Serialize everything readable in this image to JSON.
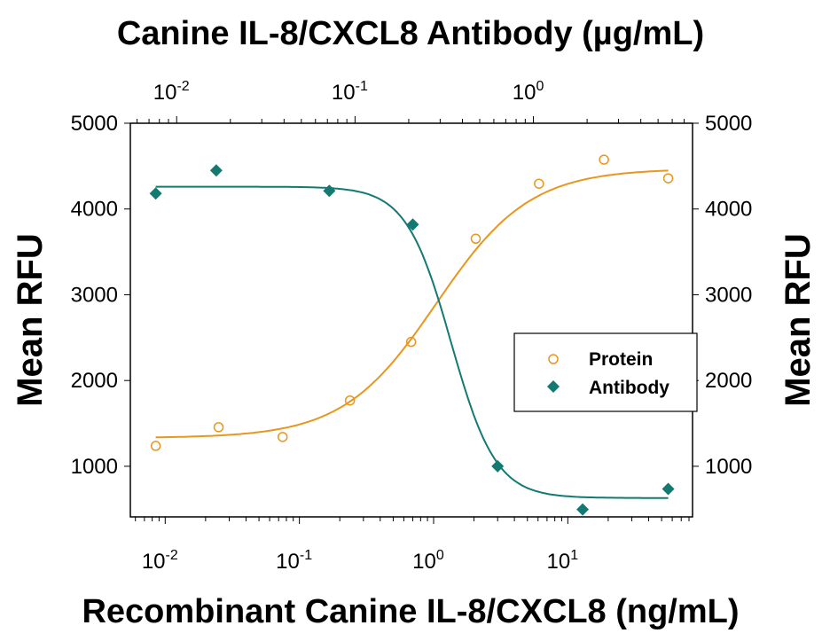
{
  "chart_data": {
    "type": "scatter",
    "title": "Canine IL-8/CXCL8 Antibody (µg/mL)",
    "xlabel": "Recombinant Canine IL-8/CXCL8 (ng/mL)",
    "ylabel": "Mean RFU",
    "ylabel_right": "Mean RFU",
    "x_scale": "log",
    "xlim": [
      0.0055,
      85
    ],
    "x_top_scale": "log",
    "x_top_lim": [
      0.0055,
      7.8
    ],
    "ylim": [
      410,
      5000
    ],
    "x_ticks": [
      {
        "base": "10",
        "exp": "-2"
      },
      {
        "base": "10",
        "exp": "-1"
      },
      {
        "base": "10",
        "exp": "0"
      },
      {
        "base": "10",
        "exp": "1"
      }
    ],
    "x_top_ticks": [
      {
        "base": "10",
        "exp": "-2"
      },
      {
        "base": "10",
        "exp": "-1"
      },
      {
        "base": "10",
        "exp": "0"
      }
    ],
    "y_ticks": [
      "1000",
      "2000",
      "3000",
      "4000",
      "5000"
    ],
    "grid": false,
    "legend_position": "right-middle",
    "series": [
      {
        "name": "Protein",
        "marker": "open-circle",
        "color": "#E8961E",
        "x": [
          0.0085,
          0.025,
          0.075,
          0.238,
          0.68,
          2.06,
          6.1,
          18.6,
          56
        ],
        "y": [
          1238,
          1456,
          1342,
          1767,
          2450,
          3653,
          4295,
          4575,
          4358
        ],
        "fit": {
          "bottom": 1330,
          "top": 4470,
          "ec50": 1.05,
          "hill": 1.25
        }
      },
      {
        "name": "Antibody",
        "marker": "filled-diamond",
        "color": "#137A72",
        "x": [
          0.0085,
          0.024,
          0.167,
          0.7,
          3.0,
          12.9,
          56
        ],
        "y": [
          4181,
          4450,
          4212,
          3819,
          1000,
          497,
          736
        ],
        "fit": {
          "bottom": 630,
          "top": 4260,
          "ec50": 1.35,
          "hill": -2.6
        }
      }
    ]
  }
}
